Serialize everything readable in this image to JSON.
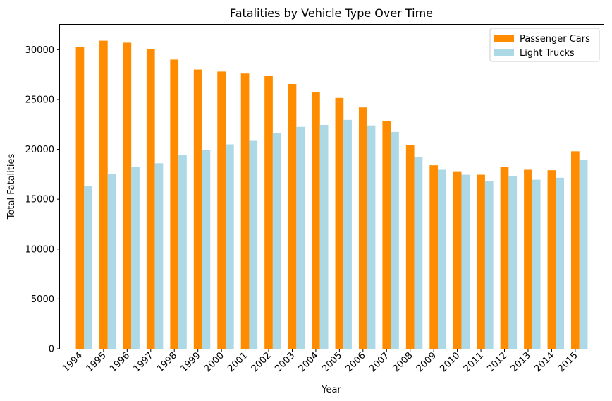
{
  "chart_data": {
    "type": "bar",
    "title": "Fatalities by Vehicle Type Over Time",
    "xlabel": "Year",
    "ylabel": "Total Fatalities",
    "categories": [
      "1994",
      "1995",
      "1996",
      "1997",
      "1998",
      "1999",
      "2000",
      "2001",
      "2002",
      "2003",
      "2004",
      "2005",
      "2006",
      "2007",
      "2008",
      "2009",
      "2010",
      "2011",
      "2012",
      "2013",
      "2014",
      "2015"
    ],
    "series": [
      {
        "name": "Passenger Cars",
        "color": "#ff8c00",
        "values": [
          30250,
          30900,
          30700,
          30050,
          29000,
          28000,
          27800,
          27600,
          27400,
          26550,
          25700,
          25150,
          24200,
          22850,
          20450,
          18400,
          17800,
          17450,
          18250,
          17950,
          17900,
          19800
        ]
      },
      {
        "name": "Light Trucks",
        "color": "#add8e6",
        "values": [
          16350,
          17550,
          18250,
          18600,
          19400,
          19900,
          20500,
          20850,
          21600,
          22250,
          22450,
          22950,
          22400,
          21750,
          19200,
          17950,
          17450,
          16800,
          17350,
          16950,
          17150,
          18900
        ]
      }
    ],
    "yticks": [
      0,
      5000,
      10000,
      15000,
      20000,
      25000,
      30000
    ],
    "ylim": [
      0,
      32500
    ],
    "grid": false,
    "legend_position": "top-right"
  }
}
